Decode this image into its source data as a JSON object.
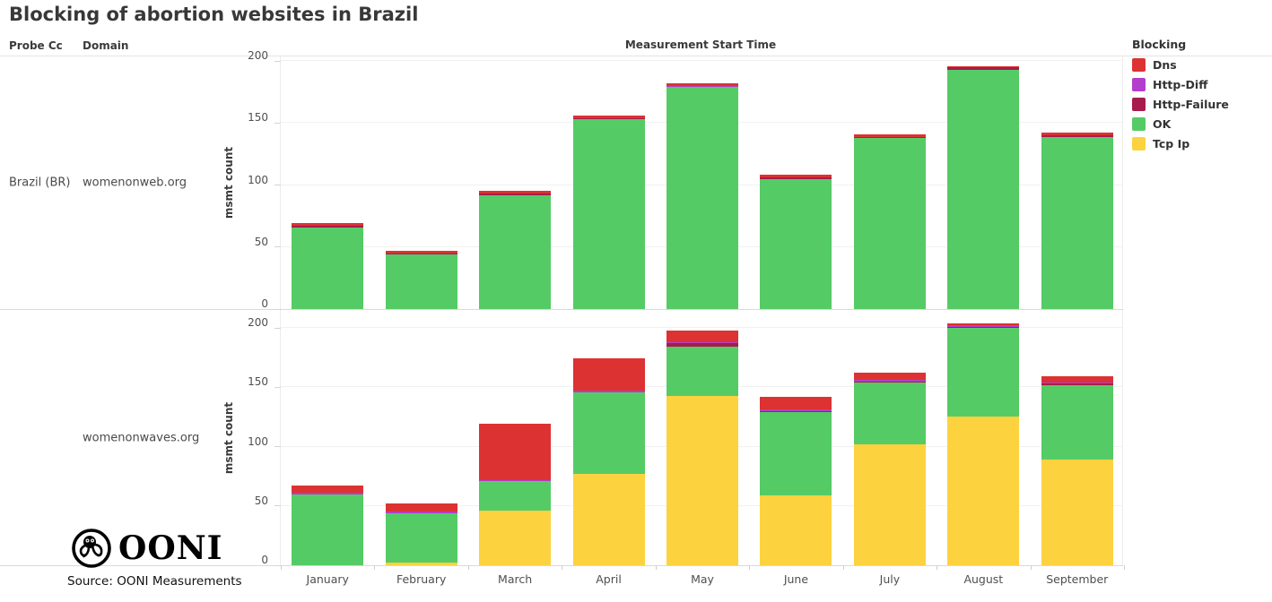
{
  "title": "Blocking of abortion websites in Brazil",
  "columns": {
    "probe_cc": "Probe Cc",
    "domain": "Domain"
  },
  "x_axis_header": "Measurement Start Time",
  "legend": {
    "title": "Blocking",
    "items": [
      {
        "label": "Dns",
        "color": "#dc3232"
      },
      {
        "label": "Http-Diff",
        "color": "#b33dcc"
      },
      {
        "label": "Http-Failure",
        "color": "#a51c4d"
      },
      {
        "label": "OK",
        "color": "#55cb66"
      },
      {
        "label": "Tcp Ip",
        "color": "#fdd23f"
      }
    ]
  },
  "rows": [
    {
      "probe_cc": "Brazil (BR)",
      "domain": "womenonweb.org"
    },
    {
      "probe_cc": "",
      "domain": "womenonwaves.org"
    }
  ],
  "source": "Source: OONI Measurements",
  "logo_text": "OONI",
  "chart_data": [
    {
      "type": "bar",
      "stacked": true,
      "facet": "womenonweb.org",
      "title": "",
      "xlabel": "Measurement Start Time",
      "ylabel": "msmt count",
      "ylim": [
        0,
        200
      ],
      "yticks": [
        0,
        50,
        100,
        150,
        200
      ],
      "grid": true,
      "legend_position": "right",
      "categories": [
        "January",
        "February",
        "March",
        "April",
        "May",
        "June",
        "July",
        "August",
        "September"
      ],
      "series": [
        {
          "name": "Tcp Ip",
          "color": "#fdd23f",
          "values": [
            0,
            0,
            0,
            0,
            0,
            0,
            0,
            0,
            0
          ]
        },
        {
          "name": "OK",
          "color": "#55cb66",
          "values": [
            66,
            44,
            92,
            153,
            179,
            105,
            138,
            193,
            139
          ]
        },
        {
          "name": "Http-Failure",
          "color": "#a51c4d",
          "values": [
            1,
            1,
            1,
            1,
            0,
            1,
            1,
            2,
            1
          ]
        },
        {
          "name": "Http-Diff",
          "color": "#b33dcc",
          "values": [
            0,
            0,
            0,
            0,
            1,
            0,
            0,
            0,
            0
          ]
        },
        {
          "name": "Dns",
          "color": "#dc3232",
          "values": [
            2,
            2,
            2,
            2,
            2,
            2,
            2,
            1,
            2
          ]
        }
      ],
      "totals": [
        69,
        47,
        95,
        156,
        182,
        108,
        141,
        196,
        142
      ]
    },
    {
      "type": "bar",
      "stacked": true,
      "facet": "womenonwaves.org",
      "title": "",
      "xlabel": "Measurement Start Time",
      "ylabel": "msmt count",
      "ylim": [
        0,
        200
      ],
      "yticks": [
        0,
        50,
        100,
        150,
        200
      ],
      "grid": true,
      "legend_position": "right",
      "categories": [
        "January",
        "February",
        "March",
        "April",
        "May",
        "June",
        "July",
        "August",
        "September"
      ],
      "series": [
        {
          "name": "Tcp Ip",
          "color": "#fdd23f",
          "values": [
            0,
            2,
            46,
            77,
            143,
            59,
            102,
            125,
            89
          ]
        },
        {
          "name": "OK",
          "color": "#55cb66",
          "values": [
            60,
            42,
            25,
            69,
            41,
            70,
            52,
            75,
            63
          ]
        },
        {
          "name": "Http-Failure",
          "color": "#a51c4d",
          "values": [
            0,
            0,
            0,
            0,
            3,
            1,
            1,
            1,
            1
          ]
        },
        {
          "name": "Http-Diff",
          "color": "#b33dcc",
          "values": [
            1,
            1,
            1,
            1,
            1,
            1,
            1,
            1,
            1
          ]
        },
        {
          "name": "Dns",
          "color": "#dc3232",
          "values": [
            6,
            7,
            47,
            27,
            10,
            11,
            6,
            2,
            5
          ]
        }
      ],
      "totals": [
        67,
        52,
        119,
        174,
        198,
        142,
        162,
        204,
        159
      ]
    }
  ]
}
